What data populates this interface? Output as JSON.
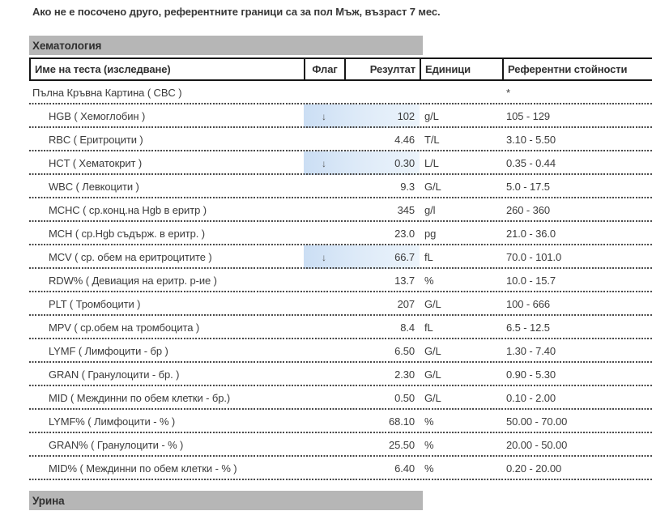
{
  "note": "Ако не е посочено друго, референтните граници са за пол Мъж, възраст 7 мес.",
  "hematology": {
    "title": "Хематология",
    "columns": {
      "name": "Име на теста (изследване)",
      "flag": "Флаг",
      "result": "Резултат",
      "units": "Единици",
      "reference": "Референтни стойности"
    },
    "rows": [
      {
        "name": "Пълна Кръвна Картина ( CBC )",
        "flag": "",
        "result": "",
        "units": "",
        "reference": "*",
        "parent": true,
        "abnormal": false
      },
      {
        "name": "HGB ( Хемоглобин )",
        "flag": "↓",
        "result": "102",
        "units": "g/L",
        "reference": "105 - 129",
        "parent": false,
        "abnormal": true
      },
      {
        "name": "RBC ( Еритроцити )",
        "flag": "",
        "result": "4.46",
        "units": "T/L",
        "reference": "3.10 - 5.50",
        "parent": false,
        "abnormal": false
      },
      {
        "name": "HCT ( Хематокрит )",
        "flag": "↓",
        "result": "0.30",
        "units": "L/L",
        "reference": "0.35 - 0.44",
        "parent": false,
        "abnormal": true
      },
      {
        "name": "WBC ( Левкоцити )",
        "flag": "",
        "result": "9.3",
        "units": "G/L",
        "reference": "5.0 - 17.5",
        "parent": false,
        "abnormal": false
      },
      {
        "name": "MCHC ( ср.конц.на Hgb в еритр )",
        "flag": "",
        "result": "345",
        "units": "g/l",
        "reference": "260 - 360",
        "parent": false,
        "abnormal": false
      },
      {
        "name": "MCH ( ср.Hgb съдърж. в еритр. )",
        "flag": "",
        "result": "23.0",
        "units": "pg",
        "reference": "21.0 - 36.0",
        "parent": false,
        "abnormal": false
      },
      {
        "name": "MCV ( ср. обем на еритроцитите )",
        "flag": "↓",
        "result": "66.7",
        "units": "fL",
        "reference": "70.0 - 101.0",
        "parent": false,
        "abnormal": true
      },
      {
        "name": "RDW% ( Девиация на еритр. р-ие )",
        "flag": "",
        "result": "13.7",
        "units": "%",
        "reference": "10.0 - 15.7",
        "parent": false,
        "abnormal": false
      },
      {
        "name": "PLT ( Тромбоцити )",
        "flag": "",
        "result": "207",
        "units": "G/L",
        "reference": "100 - 666",
        "parent": false,
        "abnormal": false
      },
      {
        "name": "MPV ( ср.обем на тромбоцита )",
        "flag": "",
        "result": "8.4",
        "units": "fL",
        "reference": "6.5 - 12.5",
        "parent": false,
        "abnormal": false
      },
      {
        "name": "LYMF ( Лимфоцити - бр )",
        "flag": "",
        "result": "6.50",
        "units": "G/L",
        "reference": "1.30 - 7.40",
        "parent": false,
        "abnormal": false
      },
      {
        "name": "GRAN ( Гранулоцити - бр. )",
        "flag": "",
        "result": "2.30",
        "units": "G/L",
        "reference": "0.90 - 5.30",
        "parent": false,
        "abnormal": false
      },
      {
        "name": "MID ( Междинни по обем клетки - бр.)",
        "flag": "",
        "result": "0.50",
        "units": "G/L",
        "reference": "0.10 - 2.00",
        "parent": false,
        "abnormal": false
      },
      {
        "name": "LYMF% ( Лимфоцити - % )",
        "flag": "",
        "result": "68.10",
        "units": "%",
        "reference": "50.00 - 70.00",
        "parent": false,
        "abnormal": false
      },
      {
        "name": "GRAN% ( Гранулоцити - % )",
        "flag": "",
        "result": "25.50",
        "units": "%",
        "reference": "20.00 - 50.00",
        "parent": false,
        "abnormal": false
      },
      {
        "name": "MID% ( Междинни по обем клетки - % )",
        "flag": "",
        "result": "6.40",
        "units": "%",
        "reference": "0.20 - 20.00",
        "parent": false,
        "abnormal": false
      }
    ]
  },
  "next_section_title": "Урина",
  "colors": {
    "section_bar": "#b6b6b6",
    "abnormal_highlight_start": "#cbdef4",
    "abnormal_highlight_end": "#ecf4fb",
    "flag_arrow": "#565656"
  }
}
